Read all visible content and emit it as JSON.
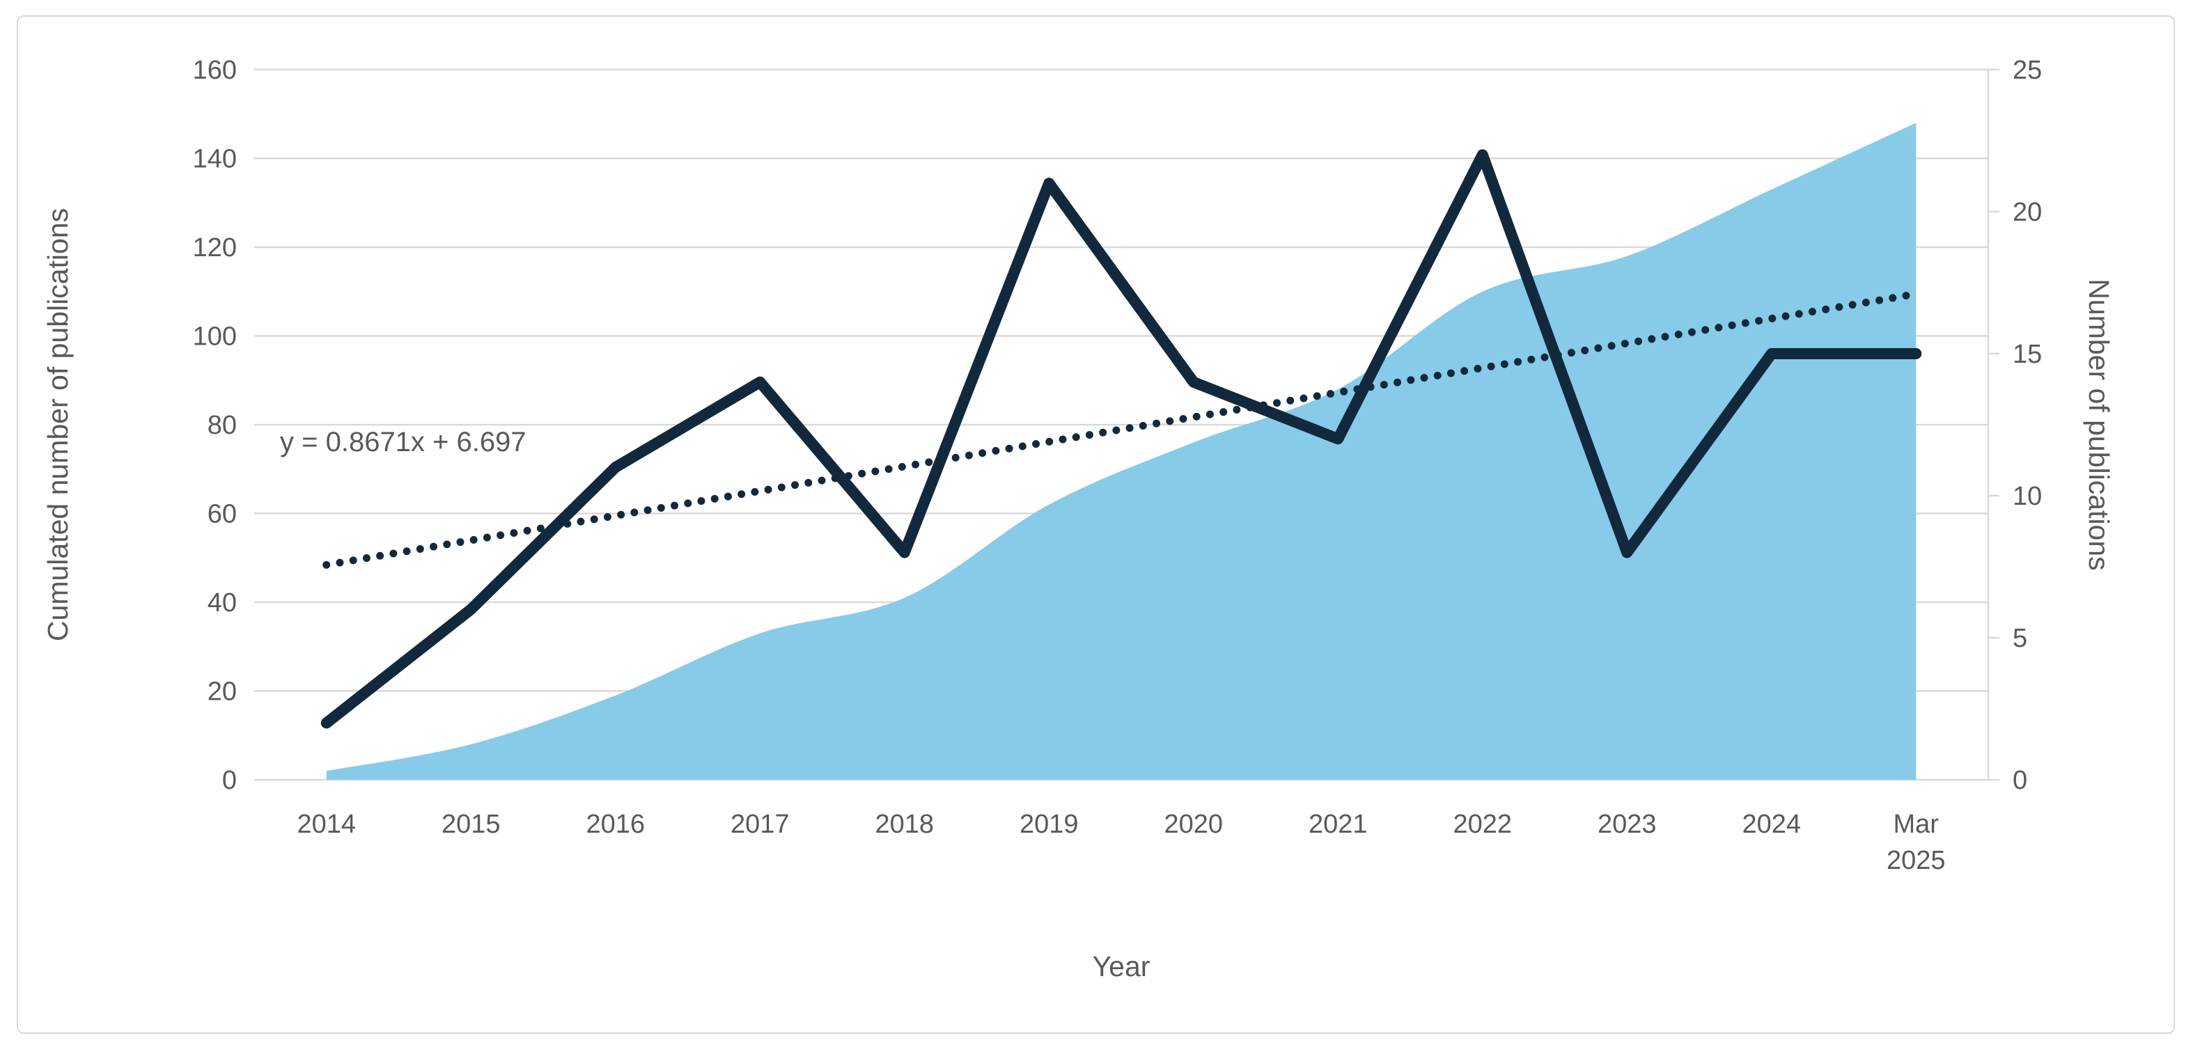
{
  "chart_data": {
    "type": "combo",
    "categories": [
      "2014",
      "2015",
      "2016",
      "2017",
      "2018",
      "2019",
      "2020",
      "2021",
      "2022",
      "2023",
      "2024",
      "Mar\n2025"
    ],
    "series": [
      {
        "name": "Cumulated number of publications",
        "type": "area",
        "axis": "left",
        "color": "#87CBE9",
        "values": [
          2,
          8,
          19,
          33,
          41,
          62,
          76,
          88,
          110,
          118,
          133,
          148
        ]
      },
      {
        "name": "Number of publications",
        "type": "line",
        "axis": "right",
        "color": "#12293D",
        "values": [
          2,
          6,
          11,
          14,
          8,
          21,
          14,
          12,
          22,
          8,
          15,
          15
        ]
      },
      {
        "name": "Linear trendline",
        "type": "dotted-trendline",
        "axis": "right",
        "color": "#12293D",
        "slope": 0.8671,
        "intercept": 6.697,
        "equation": "y = 0.8671x + 6.697"
      }
    ],
    "left_axis": {
      "title": "Cumulated number of publications",
      "range": [
        0,
        160
      ],
      "ticks": [
        0,
        20,
        40,
        60,
        80,
        100,
        120,
        140,
        160
      ]
    },
    "right_axis": {
      "title": "Number of publications",
      "range": [
        0,
        25
      ],
      "ticks": [
        0,
        5,
        10,
        15,
        20,
        25
      ]
    },
    "x_axis": {
      "title": "Year",
      "labels": [
        "2014",
        "2015",
        "2016",
        "2017",
        "2018",
        "2019",
        "2020",
        "2021",
        "2022",
        "2023",
        "2024",
        "Mar 2025"
      ]
    },
    "annotations": {
      "trendline_equation": "y = 0.8671x + 6.697"
    },
    "grid": true,
    "legend": "none",
    "colors": {
      "area_fill": "#87CBE9",
      "line_stroke": "#12293D",
      "gridline": "#d9d9d9",
      "axis_text": "#595959",
      "figure_border": "#d8d8d8",
      "background": "#ffffff"
    }
  }
}
